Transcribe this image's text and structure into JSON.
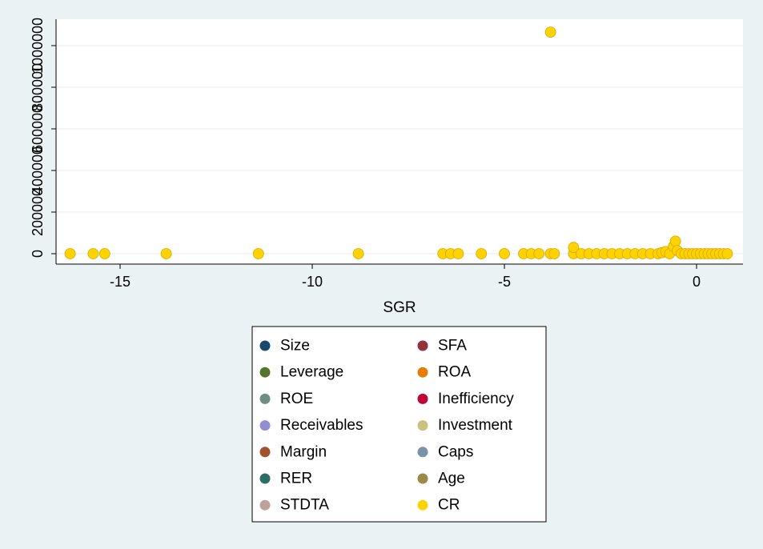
{
  "chart_data": {
    "type": "scatter",
    "xlabel": "SGR",
    "ylabel": "",
    "xlim": [
      -16.5,
      2.4
    ],
    "ylim": [
      0,
      1100000
    ],
    "x_ticks": [
      -15,
      -10,
      -5,
      0
    ],
    "x_tick_labels": [
      "-15",
      "-10",
      "-5",
      "0"
    ],
    "y_ticks": [
      0,
      200000,
      400000,
      600000,
      800000,
      1000000
    ],
    "y_tick_labels": [
      "0",
      "200000",
      "400000",
      "600000",
      "800000",
      "1000000"
    ],
    "grid": "horizontal",
    "legend_position": "bottom",
    "series": [
      {
        "name": "Size",
        "color": "#1a476f",
        "x": [],
        "y": []
      },
      {
        "name": "SFA",
        "color": "#90353b",
        "x": [],
        "y": []
      },
      {
        "name": "Leverage",
        "color": "#55752f",
        "x": [],
        "y": []
      },
      {
        "name": "ROA",
        "color": "#e37e00",
        "x": [],
        "y": []
      },
      {
        "name": "ROE",
        "color": "#6e8e84",
        "x": [],
        "y": []
      },
      {
        "name": "Inefficiency",
        "color": "#c10534",
        "x": [],
        "y": []
      },
      {
        "name": "Receivables",
        "color": "#938dd2",
        "x": [],
        "y": []
      },
      {
        "name": "Investment",
        "color": "#cac27e",
        "x": [],
        "y": []
      },
      {
        "name": "Margin",
        "color": "#a0522d",
        "x": [],
        "y": []
      },
      {
        "name": "Caps",
        "color": "#7b92a8",
        "x": [],
        "y": []
      },
      {
        "name": "RER",
        "color": "#2d6d66",
        "x": [],
        "y": []
      },
      {
        "name": "Age",
        "color": "#9c8847",
        "x": [],
        "y": []
      },
      {
        "name": "STDTA",
        "color": "#bfa19c",
        "x": [],
        "y": []
      },
      {
        "name": "CR",
        "color": "#ffd200",
        "x": [
          -16.3,
          -15.7,
          -15.4,
          -13.8,
          -11.4,
          -8.8,
          -6.6,
          -6.4,
          -6.2,
          -5.6,
          -5.0,
          -4.5,
          -4.3,
          -4.1,
          -3.8,
          -3.7,
          -3.2,
          -3.2,
          -3.0,
          -2.8,
          -2.6,
          -2.4,
          -2.2,
          -2.0,
          -1.8,
          -1.6,
          -1.4,
          -1.2,
          -1.0,
          -0.9,
          -0.8,
          -0.7,
          -0.6,
          -0.55,
          -0.5,
          -0.4,
          -0.3,
          -0.2,
          -0.1,
          0.0,
          0.1,
          0.2,
          0.3,
          0.4,
          0.5,
          0.6,
          0.7,
          0.8,
          -3.8
        ],
        "y": [
          0,
          0,
          0,
          0,
          0,
          0,
          0,
          0,
          0,
          0,
          0,
          0,
          0,
          0,
          0,
          0,
          0,
          30000,
          0,
          0,
          0,
          0,
          0,
          0,
          0,
          0,
          0,
          0,
          0,
          5000,
          10000,
          0,
          35000,
          60000,
          15000,
          0,
          0,
          0,
          0,
          0,
          0,
          0,
          0,
          0,
          0,
          0,
          0,
          0,
          1065000
        ]
      }
    ]
  }
}
